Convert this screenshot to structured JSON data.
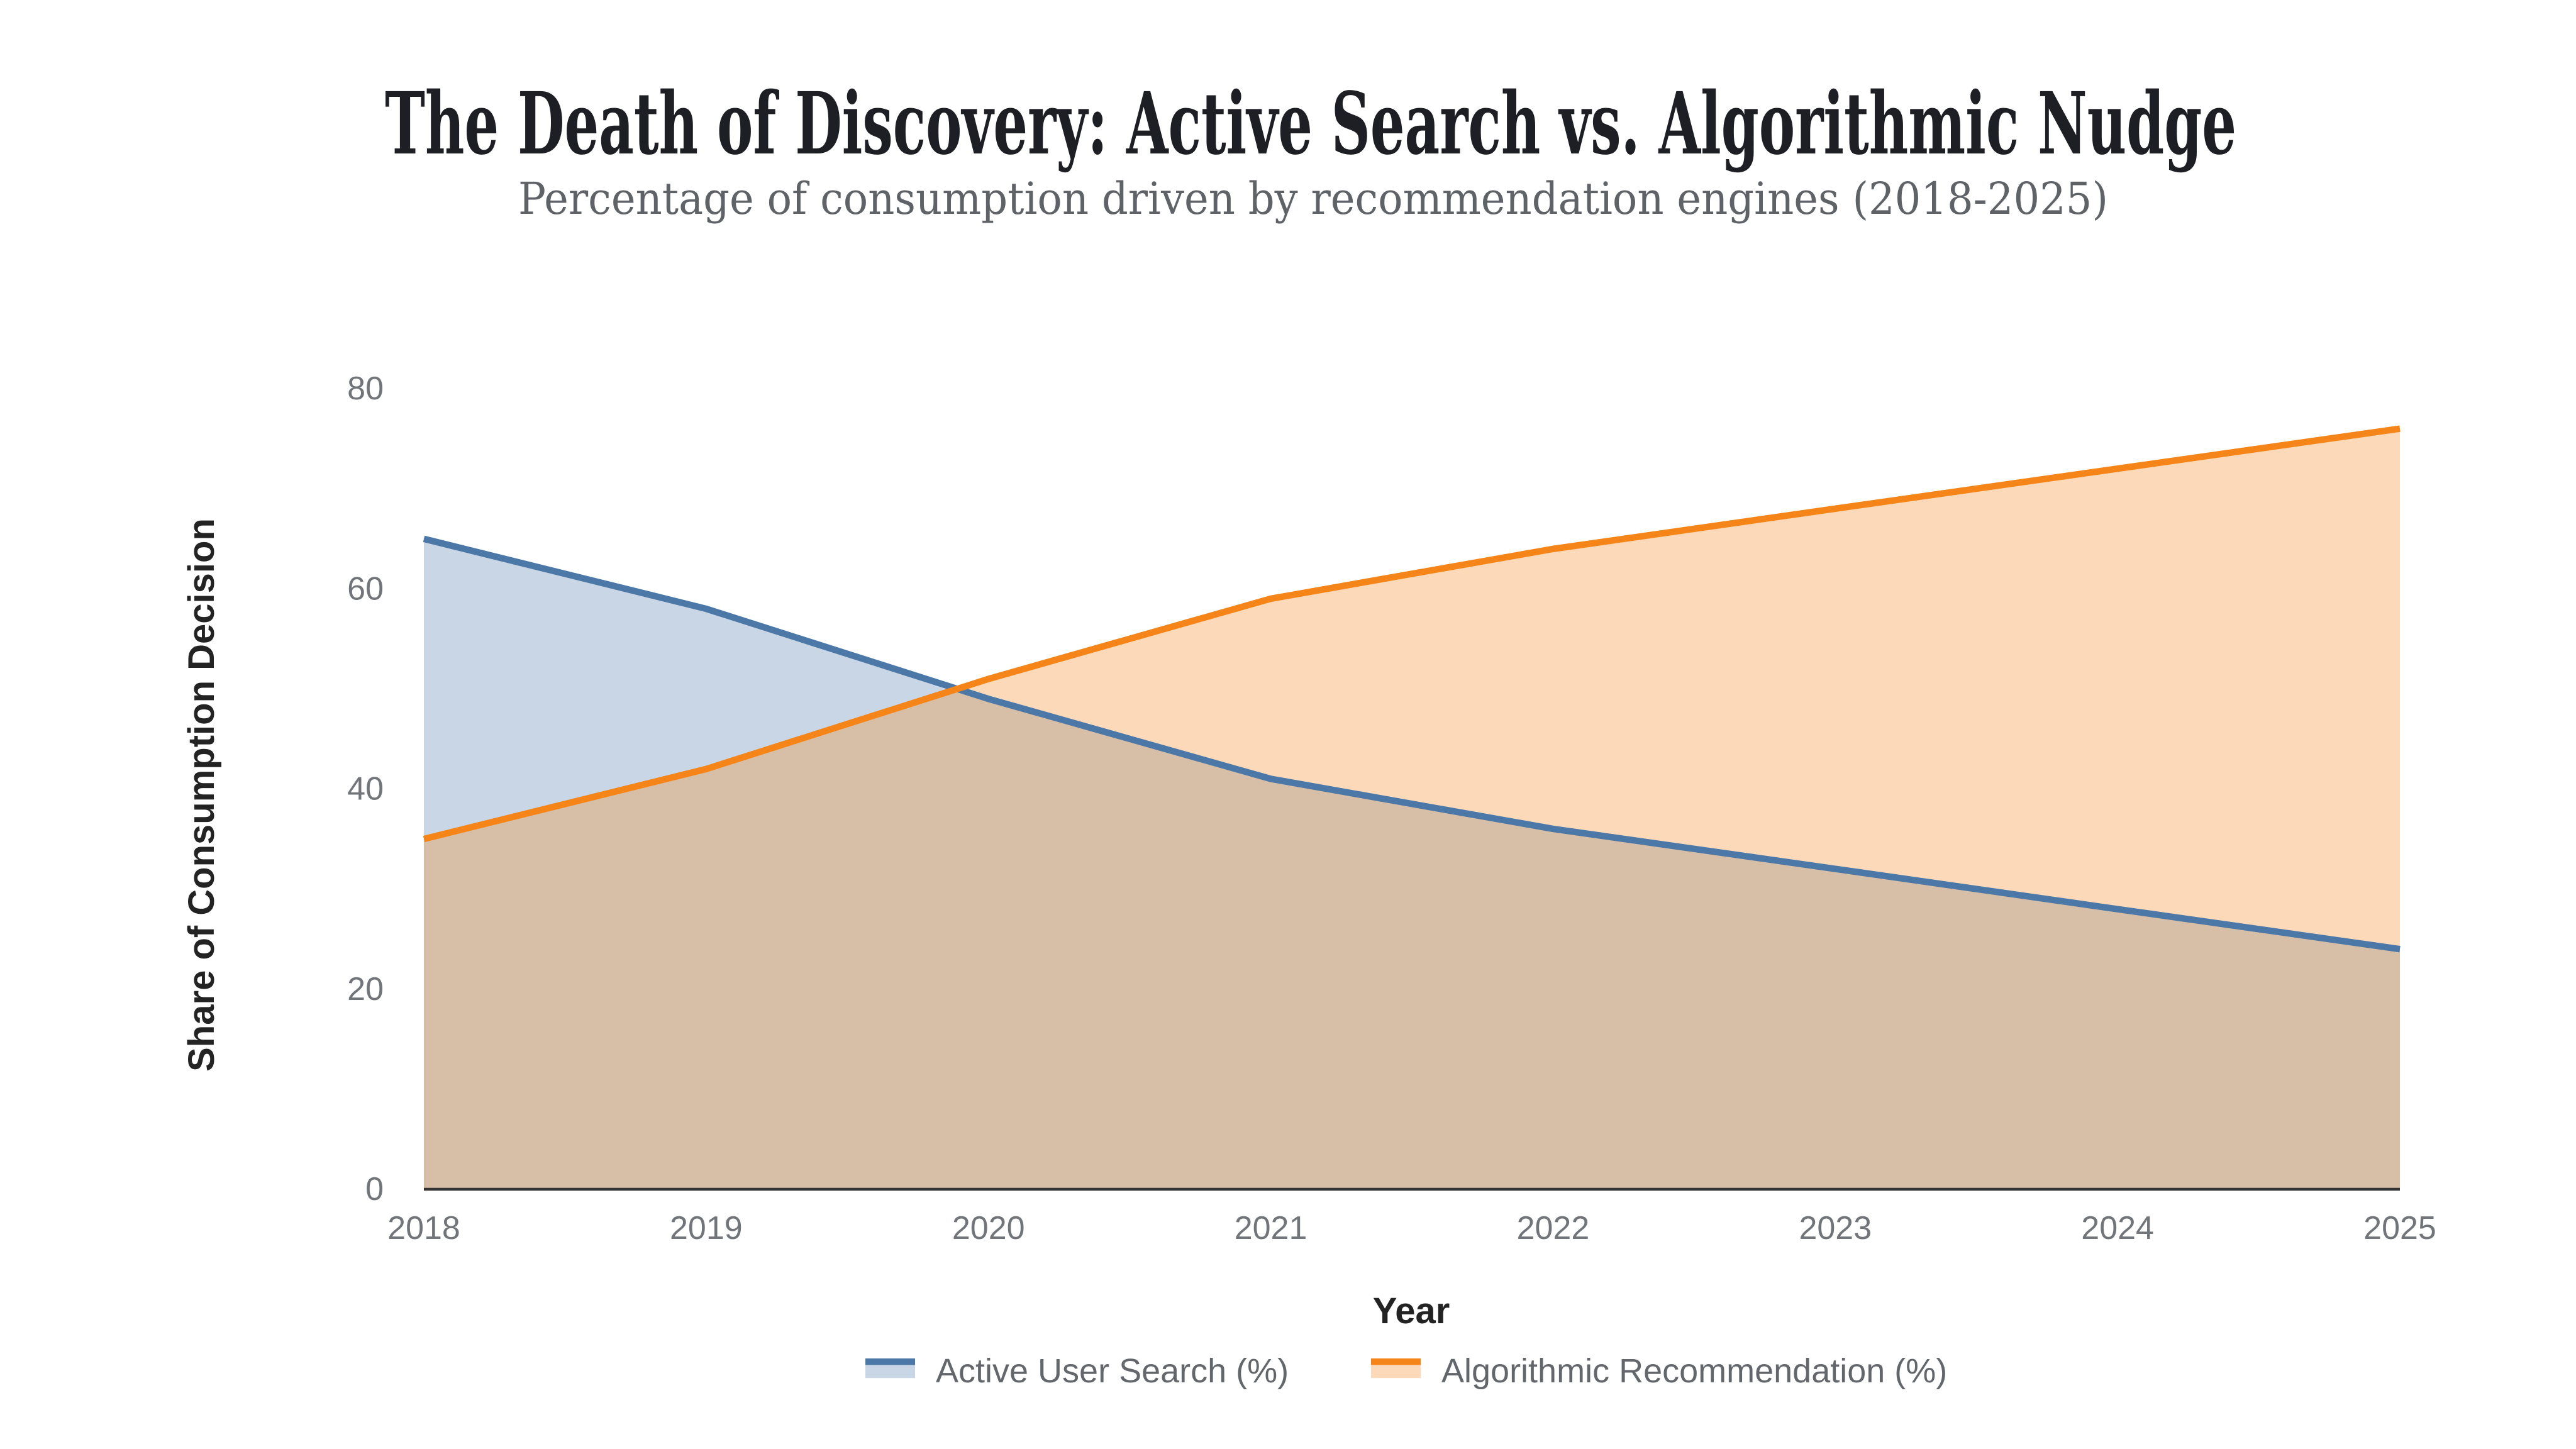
{
  "chart_data": {
    "type": "area",
    "title": "The Death of Discovery: Active Search vs. Algorithmic Nudge",
    "subtitle": "Percentage of consumption driven by recommendation engines (2018-2025)",
    "categories": [
      "2018",
      "2019",
      "2020",
      "2021",
      "2022",
      "2023",
      "2024",
      "2025"
    ],
    "series": [
      {
        "id": "active-user-search",
        "name": "Active User Search (%)",
        "values": [
          65,
          58,
          49,
          41,
          36,
          32,
          28,
          24
        ],
        "color": "#4c78a8",
        "fill_opacity": 0.3
      },
      {
        "id": "algorithmic-recommendation",
        "name": "Algorithmic Recommendation (%)",
        "values": [
          35,
          42,
          51,
          59,
          64,
          68,
          72,
          76
        ],
        "color": "#f58518",
        "fill_opacity": 0.3
      }
    ],
    "xlabel": "Year",
    "ylabel": "Share of Consumption Decision",
    "ylim": [
      0,
      80
    ],
    "y_ticks": [
      0,
      20,
      40,
      60,
      80
    ],
    "grid": false,
    "legend_position": "bottom",
    "interpolation": "linear"
  },
  "colors": {
    "background": "#ffffff",
    "title": "#1d1f24",
    "subtitle": "#5f6368",
    "axis_title": "#232323",
    "tick_label": "#71757a",
    "legend_label": "#63676c",
    "axis_line": "#333333"
  }
}
